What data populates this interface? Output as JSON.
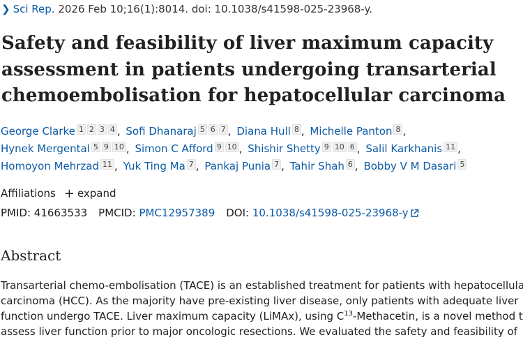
{
  "citation": {
    "journal": "Sci Rep.",
    "details": "2026 Feb 10;16(1):8014. doi: 10.1038/s41598-025-23968-y."
  },
  "title": "Safety and feasibility of liver maximum capacity assessment in patients undergoing transarterial chemoembolisation for hepatocellular carcinoma",
  "authors": [
    {
      "name": "George Clarke",
      "affs": [
        "1",
        "2",
        "3",
        "4"
      ]
    },
    {
      "name": "Sofi Dhanaraj",
      "affs": [
        "5",
        "6",
        "7"
      ]
    },
    {
      "name": "Diana Hull",
      "affs": [
        "8"
      ]
    },
    {
      "name": "Michelle Panton",
      "affs": [
        "8"
      ]
    },
    {
      "name": "Hynek Mergental",
      "affs": [
        "5",
        "9",
        "10"
      ]
    },
    {
      "name": "Simon C Afford",
      "affs": [
        "9",
        "10"
      ]
    },
    {
      "name": "Shishir Shetty",
      "affs": [
        "9",
        "10",
        "6"
      ]
    },
    {
      "name": "Salil Karkhanis",
      "affs": [
        "11"
      ]
    },
    {
      "name": "Homoyon Mehrzad",
      "affs": [
        "11"
      ]
    },
    {
      "name": "Yuk Ting Ma",
      "affs": [
        "7"
      ]
    },
    {
      "name": "Pankaj Punia",
      "affs": [
        "7"
      ]
    },
    {
      "name": "Tahir Shah",
      "affs": [
        "6"
      ]
    },
    {
      "name": "Bobby V M Dasari",
      "affs": [
        "5"
      ]
    }
  ],
  "author_lines": [
    [
      0,
      1,
      2,
      3
    ],
    [
      4,
      5,
      6,
      7
    ],
    [
      8,
      9,
      10,
      11,
      12
    ]
  ],
  "affiliations": {
    "label": "Affiliations",
    "expand_label": "expand"
  },
  "ids": {
    "pmid_label": "PMID:",
    "pmid": "41663533",
    "pmcid_label": "PMCID:",
    "pmcid": "PMC12957389",
    "doi_label": "DOI:",
    "doi": "10.1038/s41598-025-23968-y"
  },
  "abstract": {
    "heading": "Abstract",
    "line1": "Transarterial chemo-embolisation (TACE) is an established treatment for patients with hepatocellular",
    "line2": "carcinoma (HCC). As the majority have pre-existing liver disease, only patients with adequate liver",
    "line3_pre": "function undergo TACE. Liver maximum capacity (LiMAx), using C",
    "line3_sup": "13",
    "line3_post": "-Methacetin, is a novel method to",
    "line4": "assess liver function prior to major oncologic resections. We evaluated the safety and feasibility of"
  },
  "colors": {
    "link": "#0b5aa6",
    "text": "#212121",
    "badge_bg": "#f0f0f0"
  }
}
